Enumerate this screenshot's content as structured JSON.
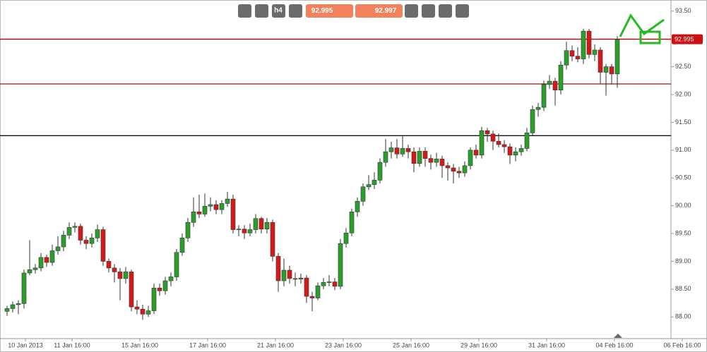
{
  "chart_data": {
    "type": "candlestick",
    "ohlc": [
      [
        88.1,
        88.2,
        88.02,
        88.15
      ],
      [
        88.15,
        88.28,
        88.08,
        88.22
      ],
      [
        88.22,
        88.3,
        88.05,
        88.24
      ],
      [
        88.24,
        88.85,
        88.15,
        88.79
      ],
      [
        88.79,
        89.38,
        88.75,
        88.85
      ],
      [
        88.85,
        88.95,
        88.78,
        88.88
      ],
      [
        88.88,
        89.15,
        88.82,
        89.07
      ],
      [
        89.07,
        89.12,
        88.9,
        88.98
      ],
      [
        88.98,
        89.3,
        88.92,
        89.19
      ],
      [
        89.19,
        89.45,
        89.12,
        89.26
      ],
      [
        89.26,
        89.55,
        89.18,
        89.47
      ],
      [
        89.47,
        89.7,
        89.4,
        89.61
      ],
      [
        89.61,
        89.7,
        89.52,
        89.63
      ],
      [
        89.63,
        89.68,
        89.3,
        89.38
      ],
      [
        89.38,
        89.45,
        89.22,
        89.32
      ],
      [
        89.32,
        89.5,
        89.25,
        89.42
      ],
      [
        89.42,
        89.66,
        89.35,
        89.57
      ],
      [
        89.57,
        89.62,
        88.92,
        89.0
      ],
      [
        89.0,
        89.05,
        88.8,
        88.88
      ],
      [
        88.88,
        88.95,
        88.62,
        88.81
      ],
      [
        88.81,
        88.88,
        88.3,
        88.69
      ],
      [
        88.69,
        88.9,
        88.6,
        88.81
      ],
      [
        88.81,
        88.85,
        88.1,
        88.18
      ],
      [
        88.18,
        88.3,
        88.05,
        88.14
      ],
      [
        88.14,
        88.22,
        87.95,
        88.05
      ],
      [
        88.05,
        88.2,
        88.0,
        88.11
      ],
      [
        88.11,
        88.6,
        88.05,
        88.52
      ],
      [
        88.52,
        88.6,
        88.38,
        88.47
      ],
      [
        88.47,
        88.72,
        88.4,
        88.65
      ],
      [
        88.65,
        88.8,
        88.55,
        88.72
      ],
      [
        88.72,
        89.22,
        88.65,
        89.16
      ],
      [
        89.16,
        89.5,
        89.1,
        89.42
      ],
      [
        89.42,
        89.78,
        89.35,
        89.7
      ],
      [
        89.7,
        90.15,
        89.62,
        89.89
      ],
      [
        89.89,
        90.2,
        89.78,
        89.85
      ],
      [
        89.85,
        90.22,
        89.8,
        89.99
      ],
      [
        89.99,
        90.15,
        89.9,
        90.02
      ],
      [
        90.02,
        90.1,
        89.85,
        89.93
      ],
      [
        89.93,
        90.1,
        89.85,
        90.04
      ],
      [
        90.04,
        90.25,
        89.98,
        90.12
      ],
      [
        90.12,
        90.2,
        89.5,
        89.57
      ],
      [
        89.57,
        89.65,
        89.45,
        89.58
      ],
      [
        89.58,
        89.65,
        89.4,
        89.51
      ],
      [
        89.51,
        89.68,
        89.45,
        89.57
      ],
      [
        89.57,
        89.85,
        89.5,
        89.77
      ],
      [
        89.77,
        89.8,
        89.5,
        89.58
      ],
      [
        89.58,
        89.78,
        89.5,
        89.7
      ],
      [
        89.7,
        89.75,
        89.0,
        89.09
      ],
      [
        89.09,
        89.15,
        88.45,
        88.65
      ],
      [
        88.65,
        89.05,
        88.55,
        88.84
      ],
      [
        88.84,
        88.92,
        88.6,
        88.69
      ],
      [
        88.69,
        88.8,
        88.55,
        88.68
      ],
      [
        88.68,
        88.78,
        88.6,
        88.7
      ],
      [
        88.7,
        88.75,
        88.25,
        88.37
      ],
      [
        88.37,
        88.45,
        88.1,
        88.34
      ],
      [
        88.34,
        88.62,
        88.3,
        88.56
      ],
      [
        88.56,
        88.7,
        88.5,
        88.62
      ],
      [
        88.62,
        88.75,
        88.55,
        88.63
      ],
      [
        88.63,
        88.7,
        88.48,
        88.55
      ],
      [
        88.55,
        89.4,
        88.5,
        89.32
      ],
      [
        89.32,
        89.6,
        89.25,
        89.51
      ],
      [
        89.51,
        89.95,
        89.45,
        89.89
      ],
      [
        89.89,
        90.15,
        89.8,
        90.08
      ],
      [
        90.08,
        90.4,
        90.0,
        90.34
      ],
      [
        90.34,
        90.55,
        90.28,
        90.38
      ],
      [
        90.38,
        90.6,
        90.3,
        90.46
      ],
      [
        90.46,
        90.85,
        90.4,
        90.78
      ],
      [
        90.78,
        91.2,
        90.7,
        90.97
      ],
      [
        90.97,
        91.15,
        90.85,
        91.04
      ],
      [
        91.04,
        91.2,
        90.85,
        90.93
      ],
      [
        90.93,
        91.25,
        90.88,
        91.03
      ],
      [
        91.03,
        91.1,
        90.85,
        90.97
      ],
      [
        90.97,
        91.05,
        90.6,
        90.76
      ],
      [
        90.76,
        91.05,
        90.7,
        90.98
      ],
      [
        90.98,
        91.05,
        90.7,
        90.85
      ],
      [
        90.85,
        90.92,
        90.65,
        90.78
      ],
      [
        90.78,
        90.95,
        90.7,
        90.84
      ],
      [
        90.84,
        90.9,
        90.5,
        90.72
      ],
      [
        90.72,
        90.78,
        90.45,
        90.68
      ],
      [
        90.68,
        90.75,
        90.4,
        90.62
      ],
      [
        90.62,
        90.7,
        90.5,
        90.59
      ],
      [
        90.59,
        90.8,
        90.52,
        90.72
      ],
      [
        90.72,
        91.05,
        90.65,
        91.0
      ],
      [
        91.0,
        91.1,
        90.85,
        90.91
      ],
      [
        90.91,
        91.42,
        90.85,
        91.35
      ],
      [
        91.35,
        91.4,
        91.15,
        91.29
      ],
      [
        91.29,
        91.35,
        91.0,
        91.16
      ],
      [
        91.16,
        91.3,
        91.05,
        91.1
      ],
      [
        91.1,
        91.18,
        90.95,
        91.06
      ],
      [
        91.06,
        91.12,
        90.75,
        90.91
      ],
      [
        90.91,
        91.05,
        90.8,
        90.97
      ],
      [
        90.97,
        91.1,
        90.9,
        91.03
      ],
      [
        91.03,
        91.4,
        90.98,
        91.31
      ],
      [
        91.31,
        91.8,
        91.25,
        91.73
      ],
      [
        91.73,
        91.85,
        91.6,
        91.77
      ],
      [
        91.77,
        92.25,
        91.7,
        92.18
      ],
      [
        92.18,
        92.35,
        92.1,
        92.24
      ],
      [
        92.24,
        92.3,
        91.8,
        92.08
      ],
      [
        92.08,
        92.6,
        92.0,
        92.53
      ],
      [
        92.53,
        92.95,
        92.45,
        92.79
      ],
      [
        92.79,
        92.88,
        92.6,
        92.69
      ],
      [
        92.69,
        92.85,
        92.58,
        92.64
      ],
      [
        92.64,
        93.18,
        92.55,
        93.14
      ],
      [
        93.14,
        93.18,
        92.65,
        92.72
      ],
      [
        92.72,
        92.9,
        92.6,
        92.8
      ],
      [
        92.8,
        92.85,
        92.2,
        92.4
      ],
      [
        92.4,
        92.55,
        91.98,
        92.5
      ],
      [
        92.5,
        92.55,
        92.18,
        92.37
      ],
      [
        92.37,
        93.05,
        92.12,
        92.99
      ]
    ],
    "up_color": "#2aa02a",
    "down_color": "#d81818",
    "xlim": [
      -1.25,
      117.5
    ],
    "xticks": [
      {
        "value": 3.25,
        "label": "10 Jan 2013"
      },
      {
        "value": 11.5,
        "label": "11 Jan 16:00"
      },
      {
        "value": 23.5,
        "label": "15 Jan 16:00"
      },
      {
        "value": 35.5,
        "label": "17 Jan 16:00"
      },
      {
        "value": 47.5,
        "label": "21 Jan 16:00"
      },
      {
        "value": 59.5,
        "label": "23 Jan 16:00"
      },
      {
        "value": 71.5,
        "label": "25 Jan 16:00"
      },
      {
        "value": 83.5,
        "label": "29 Jan 16:00"
      },
      {
        "value": 95.5,
        "label": "31 Jan 16:00"
      },
      {
        "value": 107.5,
        "label": "04 Feb 16:00"
      },
      {
        "value": 119.5,
        "label": "06 Feb 16:00"
      }
    ],
    "ylim": [
      87.61,
      93.7
    ],
    "yticks": [
      {
        "value": 88,
        "label": "88.00"
      },
      {
        "value": 88.5,
        "label": "88.50"
      },
      {
        "value": 89,
        "label": "89.00"
      },
      {
        "value": 89.5,
        "label": "89.50"
      },
      {
        "value": 90,
        "label": "90.00"
      },
      {
        "value": 90.5,
        "label": "90.50"
      },
      {
        "value": 91,
        "label": "91.00"
      },
      {
        "value": 91.5,
        "label": "91.50"
      },
      {
        "value": 92,
        "label": "92.00"
      },
      {
        "value": 92.5,
        "label": "92.50"
      },
      {
        "value": 93,
        "label": "93.00"
      },
      {
        "value": 93.5,
        "label": "93.50"
      }
    ],
    "hlines": [
      {
        "value": 92.995,
        "color": "#c00000"
      },
      {
        "value": 92.19,
        "color": "#8b1a1a"
      },
      {
        "value": 91.26,
        "color": "#111111"
      }
    ],
    "price_tag": {
      "value": 92.995,
      "label": "92.995"
    }
  },
  "toolbar": {
    "bid": "92.995",
    "ask": "92.997",
    "timeframe": "h4"
  }
}
